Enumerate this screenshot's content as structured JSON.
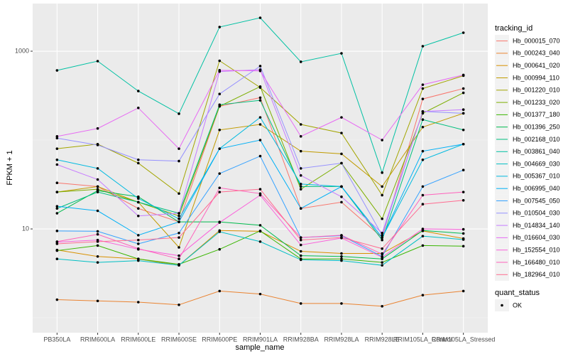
{
  "chart_data": {
    "type": "line",
    "x_label": "sample_name",
    "y_label": "FPKM + 1",
    "log_y": true,
    "grid": true,
    "ylim": [
      0.68,
      3436
    ],
    "yticks": [
      10,
      1000
    ],
    "y_minor_gridlines": [
      1,
      100
    ],
    "point_color": "#000000",
    "legend_title": "tracking_id",
    "legend_position": "right",
    "point_legend_title": "quant_status",
    "point_legend_label": "OK",
    "categories": [
      "PB350LA",
      "RRIM600LA",
      "RRIM600LE",
      "RRIM600SE",
      "RRIM600PE",
      "RRIM901LA",
      "RRIM928BA",
      "RRIM928LA",
      "RRIM928LE",
      "RRIM105LA_Control",
      "RRIM105LA_Stressed"
    ],
    "series": [
      {
        "name": "Hb_000015_070",
        "color": "#F8766D",
        "values": [
          33,
          30,
          17,
          12,
          240,
          300,
          17,
          20,
          8,
          290,
          380
        ]
      },
      {
        "name": "Hb_000243_040",
        "color": "#EA8331",
        "values": [
          1.6,
          1.55,
          1.5,
          1.4,
          2.0,
          1.85,
          1.45,
          1.45,
          1.35,
          1.8,
          2.0
        ]
      },
      {
        "name": "Hb_000641_020",
        "color": "#D89000",
        "values": [
          5.8,
          4.9,
          4.6,
          3.9,
          9.6,
          9.4,
          5.6,
          5.3,
          5.3,
          9.5,
          7.8
        ]
      },
      {
        "name": "Hb_000994_110",
        "color": "#C09B00",
        "values": [
          26,
          30,
          20,
          6.2,
          130,
          150,
          75,
          70,
          30,
          140,
          200
        ]
      },
      {
        "name": "Hb_001220_010",
        "color": "#A3A500",
        "values": [
          80,
          90,
          55,
          25,
          780,
          390,
          150,
          120,
          24,
          380,
          530
        ]
      },
      {
        "name": "Hb_001233_020",
        "color": "#7CAE00",
        "values": [
          26,
          28,
          20,
          14,
          240,
          400,
          28,
          55,
          13,
          200,
          340
        ]
      },
      {
        "name": "Hb_001377_180",
        "color": "#39B600",
        "values": [
          5.7,
          6.5,
          4.6,
          4.0,
          5.9,
          9.5,
          4.6,
          4.6,
          4.2,
          6.5,
          6.4
        ]
      },
      {
        "name": "Hb_001396_250",
        "color": "#00BB4E",
        "values": [
          15,
          27,
          23,
          12,
          12,
          11,
          5.0,
          4.9,
          4.6,
          9.6,
          8.9
        ]
      },
      {
        "name": "Hb_002168_010",
        "color": "#00BF7D",
        "values": [
          17,
          26,
          20,
          15,
          250,
          280,
          30,
          30,
          7.5,
          170,
          130
        ]
      },
      {
        "name": "Hb_003861_040",
        "color": "#00C1A3",
        "values": [
          608,
          773,
          356,
          198,
          1871,
          2377,
          759,
          946,
          43,
          1138,
          1614
        ]
      },
      {
        "name": "Hb_004669_030",
        "color": "#00BFC4",
        "values": [
          4.6,
          4.2,
          4.4,
          3.9,
          9.3,
          7.2,
          4.5,
          4.4,
          3.9,
          8.3,
          7.6
        ]
      },
      {
        "name": "Hb_005367_010",
        "color": "#00BAE0",
        "values": [
          60,
          48,
          22,
          13,
          80,
          180,
          32,
          30,
          8,
          60,
          90
        ]
      },
      {
        "name": "Hb_006995_040",
        "color": "#00B0F6",
        "values": [
          18,
          16,
          8.5,
          12,
          80,
          100,
          17,
          30,
          8,
          75,
          90
        ]
      },
      {
        "name": "Hb_007545_050",
        "color": "#35A2FF",
        "values": [
          9.5,
          9.4,
          6.8,
          9.0,
          42,
          66,
          8,
          8.4,
          4.9,
          30,
          46
        ]
      },
      {
        "name": "Hb_010504_030",
        "color": "#9590FF",
        "values": [
          105,
          88,
          60,
          58,
          330,
          680,
          48,
          55,
          8.5,
          210,
          200
        ]
      },
      {
        "name": "Hb_014834_140",
        "color": "#C77CFF",
        "values": [
          53,
          36,
          14,
          15,
          590,
          620,
          40,
          23,
          9,
          210,
          220
        ]
      },
      {
        "name": "Hb_016604_030",
        "color": "#E76BF3",
        "values": [
          110,
          135,
          230,
          80,
          610,
          600,
          110,
          180,
          100,
          420,
          540
        ]
      },
      {
        "name": "Hb_152554_010",
        "color": "#FA62DB",
        "values": [
          7.1,
          7.5,
          5.9,
          5.0,
          11.8,
          24,
          6.6,
          7.9,
          4.8,
          10.0,
          9.9
        ]
      },
      {
        "name": "Hb_166480_010",
        "color": "#FF62BC",
        "values": [
          7.2,
          8.7,
          6.0,
          4.6,
          29,
          25,
          8.0,
          8.5,
          5.2,
          24,
          26
        ]
      },
      {
        "name": "Hb_182964_010",
        "color": "#FF6C91",
        "values": [
          6.8,
          7.2,
          7.5,
          8.0,
          26,
          28,
          7.5,
          8,
          6,
          19,
          21
        ]
      }
    ]
  }
}
